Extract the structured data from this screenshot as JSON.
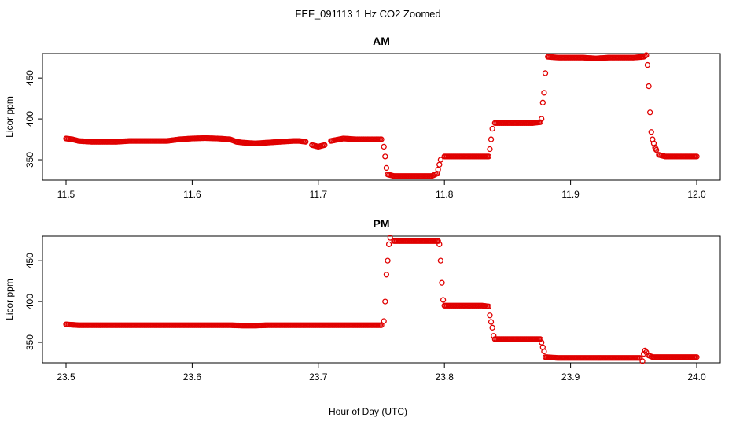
{
  "figure": {
    "title": "FEF_091113  1 Hz CO2 Zoomed",
    "xlabel": "Hour of Day (UTC)",
    "series_color": "#e00000"
  },
  "chart_data": [
    {
      "type": "scatter",
      "title": "AM",
      "xlabel": "",
      "ylabel": "Licor ppm",
      "xlim": [
        11.5,
        12.0
      ],
      "ylim": [
        325,
        480
      ],
      "x_ticks": [
        "11.5",
        "11.6",
        "11.7",
        "11.8",
        "11.9",
        "12.0"
      ],
      "y_ticks": [
        "350",
        "400",
        "450"
      ],
      "grid": false,
      "legend": "none",
      "series": [
        {
          "points": [
            [
              11.5,
              376
            ],
            [
              11.505,
              375
            ],
            [
              11.51,
              373
            ],
            [
              11.52,
              372
            ],
            [
              11.53,
              372
            ],
            [
              11.54,
              372
            ],
            [
              11.55,
              373
            ],
            [
              11.56,
              373
            ],
            [
              11.57,
              373
            ],
            [
              11.58,
              373
            ],
            [
              11.59,
              375
            ],
            [
              11.6,
              376
            ],
            [
              11.61,
              376.5
            ],
            [
              11.62,
              376
            ],
            [
              11.63,
              375
            ],
            [
              11.635,
              372
            ],
            [
              11.64,
              371
            ],
            [
              11.65,
              370
            ],
            [
              11.66,
              371
            ],
            [
              11.67,
              372
            ],
            [
              11.68,
              373
            ],
            [
              11.685,
              373
            ],
            [
              11.69,
              372
            ],
            [
              11.695,
              368
            ],
            [
              11.7,
              366
            ],
            [
              11.705,
              368
            ],
            [
              11.71,
              373
            ],
            [
              11.72,
              376
            ],
            [
              11.73,
              375
            ],
            [
              11.74,
              375
            ],
            [
              11.75,
              375
            ],
            [
              11.752,
              366
            ],
            [
              11.753,
              354
            ],
            [
              11.754,
              340
            ],
            [
              11.755,
              332
            ],
            [
              11.76,
              330
            ],
            [
              11.77,
              330
            ],
            [
              11.78,
              330
            ],
            [
              11.79,
              330
            ],
            [
              11.794,
              333
            ],
            [
              11.795,
              338
            ],
            [
              11.796,
              344
            ],
            [
              11.797,
              350
            ],
            [
              11.8,
              354
            ],
            [
              11.81,
              354
            ],
            [
              11.82,
              354
            ],
            [
              11.83,
              354
            ],
            [
              11.835,
              354
            ],
            [
              11.836,
              363
            ],
            [
              11.837,
              375
            ],
            [
              11.838,
              388
            ],
            [
              11.84,
              395
            ],
            [
              11.85,
              395
            ],
            [
              11.86,
              395
            ],
            [
              11.87,
              395
            ],
            [
              11.876,
              396
            ],
            [
              11.877,
              400
            ],
            [
              11.878,
              420
            ],
            [
              11.879,
              432
            ],
            [
              11.88,
              456
            ],
            [
              11.882,
              476
            ],
            [
              11.89,
              475
            ],
            [
              11.9,
              475
            ],
            [
              11.91,
              475
            ],
            [
              11.92,
              474
            ],
            [
              11.93,
              475
            ],
            [
              11.94,
              475
            ],
            [
              11.95,
              475
            ],
            [
              11.958,
              476
            ],
            [
              11.96,
              478
            ],
            [
              11.961,
              466
            ],
            [
              11.962,
              440
            ],
            [
              11.963,
              408
            ],
            [
              11.964,
              384
            ],
            [
              11.965,
              375
            ],
            [
              11.966,
              370
            ],
            [
              11.967,
              365
            ],
            [
              11.968,
              362
            ],
            [
              11.97,
              356
            ],
            [
              11.975,
              354
            ],
            [
              11.98,
              354
            ],
            [
              11.99,
              354
            ],
            [
              12.0,
              354
            ]
          ]
        }
      ]
    },
    {
      "type": "scatter",
      "title": "PM",
      "xlabel": "",
      "ylabel": "Licor ppm",
      "xlim": [
        23.5,
        24.0
      ],
      "ylim": [
        325,
        480
      ],
      "x_ticks": [
        "23.5",
        "23.6",
        "23.7",
        "23.8",
        "23.9",
        "24.0"
      ],
      "y_ticks": [
        "350",
        "400",
        "450"
      ],
      "grid": false,
      "legend": "none",
      "series": [
        {
          "points": [
            [
              23.5,
              372
            ],
            [
              23.51,
              371
            ],
            [
              23.52,
              371
            ],
            [
              23.53,
              371
            ],
            [
              23.54,
              371
            ],
            [
              23.55,
              371
            ],
            [
              23.56,
              371
            ],
            [
              23.57,
              371
            ],
            [
              23.58,
              371
            ],
            [
              23.59,
              371
            ],
            [
              23.6,
              371
            ],
            [
              23.61,
              371
            ],
            [
              23.62,
              371
            ],
            [
              23.63,
              371
            ],
            [
              23.64,
              370.5
            ],
            [
              23.65,
              370.5
            ],
            [
              23.66,
              371
            ],
            [
              23.67,
              371
            ],
            [
              23.68,
              371
            ],
            [
              23.69,
              371
            ],
            [
              23.7,
              371
            ],
            [
              23.71,
              371
            ],
            [
              23.72,
              371
            ],
            [
              23.73,
              371
            ],
            [
              23.74,
              371
            ],
            [
              23.75,
              371
            ],
            [
              23.752,
              376
            ],
            [
              23.753,
              400
            ],
            [
              23.754,
              433
            ],
            [
              23.755,
              450
            ],
            [
              23.756,
              470
            ],
            [
              23.757,
              478
            ],
            [
              23.76,
              474
            ],
            [
              23.77,
              474
            ],
            [
              23.78,
              474
            ],
            [
              23.79,
              474
            ],
            [
              23.795,
              474
            ],
            [
              23.796,
              470
            ],
            [
              23.797,
              450
            ],
            [
              23.798,
              423
            ],
            [
              23.799,
              402
            ],
            [
              23.8,
              395
            ],
            [
              23.81,
              395
            ],
            [
              23.82,
              395
            ],
            [
              23.83,
              395
            ],
            [
              23.835,
              394
            ],
            [
              23.836,
              383
            ],
            [
              23.837,
              375
            ],
            [
              23.838,
              368
            ],
            [
              23.839,
              358
            ],
            [
              23.84,
              354
            ],
            [
              23.85,
              354
            ],
            [
              23.86,
              354
            ],
            [
              23.87,
              354
            ],
            [
              23.876,
              354
            ],
            [
              23.877,
              350
            ],
            [
              23.878,
              344
            ],
            [
              23.879,
              339
            ],
            [
              23.88,
              332
            ],
            [
              23.89,
              331
            ],
            [
              23.9,
              331
            ],
            [
              23.91,
              331
            ],
            [
              23.92,
              331
            ],
            [
              23.93,
              331
            ],
            [
              23.94,
              331
            ],
            [
              23.95,
              331
            ],
            [
              23.955,
              331
            ],
            [
              23.957,
              327
            ],
            [
              23.958,
              336
            ],
            [
              23.959,
              340
            ],
            [
              23.96,
              338
            ],
            [
              23.962,
              334
            ],
            [
              23.965,
              332
            ],
            [
              23.97,
              332
            ],
            [
              23.98,
              332
            ],
            [
              23.99,
              332
            ],
            [
              24.0,
              332
            ]
          ]
        }
      ]
    }
  ]
}
